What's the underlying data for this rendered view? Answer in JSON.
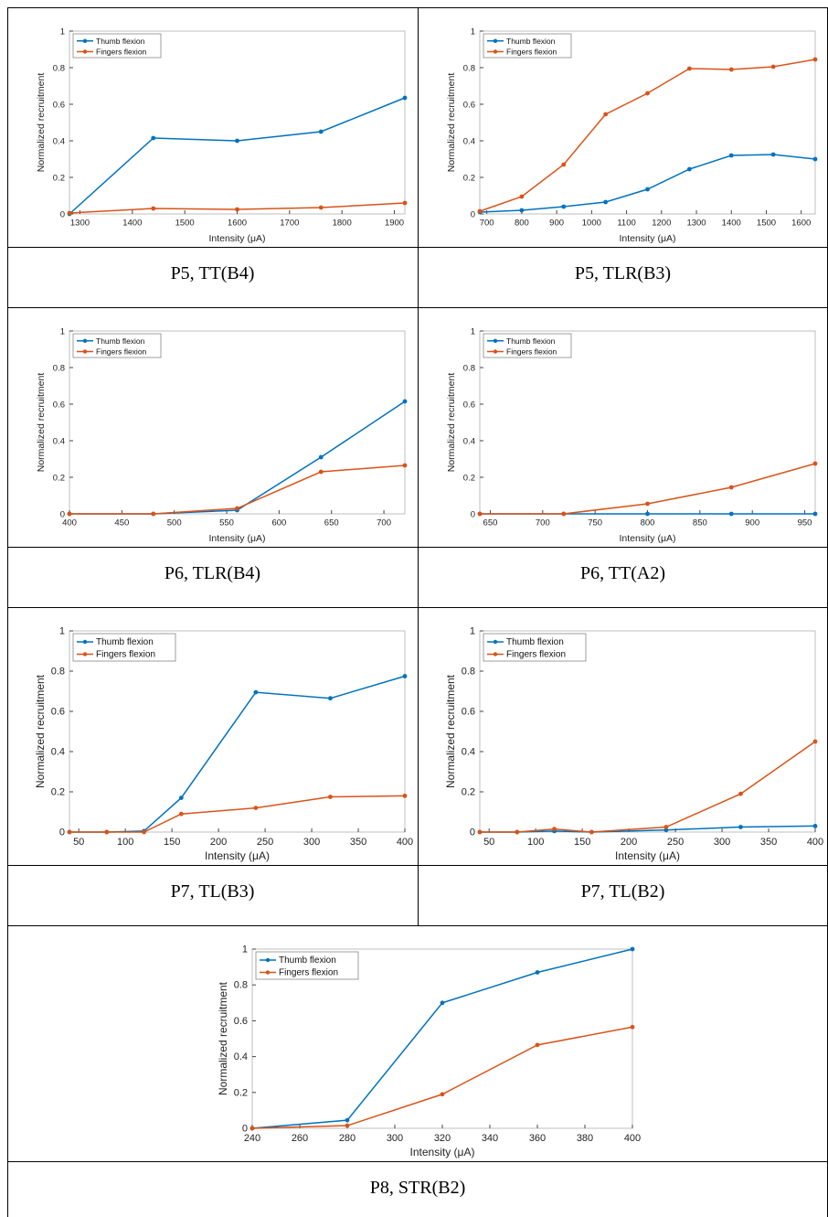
{
  "colors": {
    "thumb": "#0072BD",
    "fingers": "#D95319"
  },
  "legend": {
    "thumb": "Thumb flexion",
    "fingers": "Fingers flexion"
  },
  "chart_data": [
    {
      "type": "line",
      "caption": "P5, TT(B4)",
      "xlabel": "Intensity (μA)",
      "ylabel": "Normalized recruitment",
      "xlim": [
        1280,
        1920
      ],
      "ylim": [
        0,
        1
      ],
      "xticks": [
        1300,
        1400,
        1500,
        1600,
        1700,
        1800,
        1900
      ],
      "yticks": [
        0,
        0.2,
        0.4,
        0.6,
        0.8,
        1
      ],
      "series": [
        {
          "name": "Thumb flexion",
          "x": [
            1280,
            1440,
            1600,
            1760,
            1920
          ],
          "y": [
            0,
            0.415,
            0.4,
            0.45,
            0.635
          ]
        },
        {
          "name": "Fingers flexion",
          "x": [
            1280,
            1440,
            1600,
            1760,
            1920
          ],
          "y": [
            0.005,
            0.03,
            0.025,
            0.035,
            0.06
          ]
        }
      ]
    },
    {
      "type": "line",
      "caption": "P5, TLR(B3)",
      "xlabel": "Intensity (μA)",
      "ylabel": "Normalized recruitment",
      "xlim": [
        680,
        1640
      ],
      "ylim": [
        0,
        1
      ],
      "xticks": [
        700,
        800,
        900,
        1000,
        1100,
        1200,
        1300,
        1400,
        1500,
        1600
      ],
      "yticks": [
        0,
        0.2,
        0.4,
        0.6,
        0.8,
        1
      ],
      "series": [
        {
          "name": "Thumb flexion",
          "x": [
            680,
            800,
            920,
            1040,
            1160,
            1280,
            1400,
            1520,
            1640
          ],
          "y": [
            0.01,
            0.02,
            0.04,
            0.065,
            0.135,
            0.245,
            0.32,
            0.325,
            0.3
          ]
        },
        {
          "name": "Fingers flexion",
          "x": [
            680,
            800,
            920,
            1040,
            1160,
            1280,
            1400,
            1520,
            1640
          ],
          "y": [
            0.015,
            0.095,
            0.27,
            0.545,
            0.66,
            0.795,
            0.79,
            0.805,
            0.845
          ]
        }
      ]
    },
    {
      "type": "line",
      "caption": "P6, TLR(B4)",
      "xlabel": "Intensity (μA)",
      "ylabel": "Normalized recruitment",
      "xlim": [
        400,
        720
      ],
      "ylim": [
        0,
        1
      ],
      "xticks": [
        400,
        450,
        500,
        550,
        600,
        650,
        700
      ],
      "yticks": [
        0,
        0.2,
        0.4,
        0.6,
        0.8,
        1
      ],
      "series": [
        {
          "name": "Thumb flexion",
          "x": [
            400,
            480,
            560,
            640,
            720
          ],
          "y": [
            0,
            0,
            0.02,
            0.31,
            0.615
          ]
        },
        {
          "name": "Fingers flexion",
          "x": [
            400,
            480,
            560,
            640,
            720
          ],
          "y": [
            0,
            0,
            0.03,
            0.23,
            0.265
          ]
        }
      ]
    },
    {
      "type": "line",
      "caption": "P6, TT(A2)",
      "xlabel": "Intensity (μA)",
      "ylabel": "Normalized recruitment",
      "xlim": [
        640,
        960
      ],
      "ylim": [
        0,
        1
      ],
      "xticks": [
        650,
        700,
        750,
        800,
        850,
        900,
        950
      ],
      "yticks": [
        0,
        0.2,
        0.4,
        0.6,
        0.8,
        1
      ],
      "series": [
        {
          "name": "Thumb flexion",
          "x": [
            640,
            720,
            800,
            880,
            960
          ],
          "y": [
            0,
            0,
            0,
            0,
            0
          ]
        },
        {
          "name": "Fingers flexion",
          "x": [
            640,
            720,
            800,
            880,
            960
          ],
          "y": [
            0,
            0,
            0.055,
            0.145,
            0.275
          ]
        }
      ]
    },
    {
      "type": "line",
      "caption": "P7, TL(B3)",
      "xlabel": "Intensity (μA)",
      "ylabel": "Normalized recruitment",
      "xlim": [
        40,
        400
      ],
      "ylim": [
        0,
        1
      ],
      "xticks": [
        50,
        100,
        150,
        200,
        250,
        300,
        350,
        400
      ],
      "yticks": [
        0,
        0.2,
        0.4,
        0.6,
        0.8,
        1
      ],
      "series": [
        {
          "name": "Thumb flexion",
          "x": [
            40,
            80,
            120,
            160,
            240,
            320,
            400
          ],
          "y": [
            0,
            0,
            0.005,
            0.17,
            0.695,
            0.665,
            0.775
          ]
        },
        {
          "name": "Fingers flexion",
          "x": [
            40,
            80,
            120,
            160,
            240,
            320,
            400
          ],
          "y": [
            0,
            0,
            0,
            0.09,
            0.12,
            0.175,
            0.18
          ]
        }
      ]
    },
    {
      "type": "line",
      "caption": "P7, TL(B2)",
      "xlabel": "Intensity (μA)",
      "ylabel": "Normalized recruitment",
      "xlim": [
        40,
        400
      ],
      "ylim": [
        0,
        1
      ],
      "xticks": [
        50,
        100,
        150,
        200,
        250,
        300,
        350,
        400
      ],
      "yticks": [
        0,
        0.2,
        0.4,
        0.6,
        0.8,
        1
      ],
      "series": [
        {
          "name": "Thumb flexion",
          "x": [
            40,
            80,
            120,
            160,
            240,
            320,
            400
          ],
          "y": [
            0,
            0,
            0.005,
            0,
            0.01,
            0.025,
            0.03
          ]
        },
        {
          "name": "Fingers flexion",
          "x": [
            40,
            80,
            120,
            160,
            240,
            320,
            400
          ],
          "y": [
            0,
            0,
            0.015,
            0,
            0.025,
            0.19,
            0.45
          ]
        }
      ]
    },
    {
      "type": "line",
      "caption": "P8, STR(B2)",
      "xlabel": "Intensity (μA)",
      "ylabel": "Normalized recruitment",
      "xlim": [
        240,
        400
      ],
      "ylim": [
        0,
        1
      ],
      "xticks": [
        240,
        260,
        280,
        300,
        320,
        340,
        360,
        380,
        400
      ],
      "yticks": [
        0,
        0.2,
        0.4,
        0.6,
        0.8,
        1
      ],
      "series": [
        {
          "name": "Thumb flexion",
          "x": [
            240,
            280,
            320,
            360,
            400
          ],
          "y": [
            0,
            0.045,
            0.7,
            0.87,
            1.0
          ]
        },
        {
          "name": "Fingers flexion",
          "x": [
            240,
            280,
            320,
            360,
            400
          ],
          "y": [
            0,
            0.015,
            0.19,
            0.465,
            0.565
          ]
        }
      ]
    }
  ]
}
